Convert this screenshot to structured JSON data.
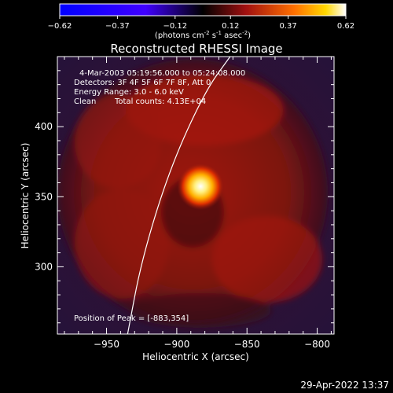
{
  "chart_data": {
    "type": "heatmap",
    "title": "Reconstructed RHESSI Image",
    "colorbar": {
      "min": -0.62,
      "max": 0.62,
      "ticks": [
        "-0.62",
        "-0.37",
        "-0.12",
        "0.12",
        "0.37",
        "0.62"
      ],
      "unit_main": "(photons cm",
      "unit_sup1": "-2",
      "unit_mid": " s",
      "unit_sup2": "-1",
      "unit_mid2": " asec",
      "unit_sup3": "-2",
      "unit_end": ")"
    },
    "xlabel": "Heliocentric X (arcsec)",
    "ylabel": "Heliocentric Y (arcsec)",
    "xlim": [
      -985,
      -788
    ],
    "ylim": [
      252,
      450
    ],
    "x_ticks": [
      -950,
      -900,
      -850,
      -800
    ],
    "x_tick_labels": [
      "−950",
      "−900",
      "−850",
      "−800"
    ],
    "y_ticks": [
      300,
      350,
      400
    ],
    "y_tick_labels": [
      "300",
      "350",
      "400"
    ],
    "peak": {
      "x": -883,
      "y": 354
    },
    "annotations": {
      "time": "4-Mar-2003 05:19:56.000 to 05:24:08.000",
      "detectors": "Detectors: 3F 4F 5F 6F 7F 8F, Att 0",
      "energy": "Energy Range: 3.0 - 6.0 keV",
      "clean": "Clean",
      "counts": "Total counts: 4.13E+04",
      "peak_label": "Position of Peak = [-883,354]"
    },
    "limb": [
      [
        -935,
        252
      ],
      [
        -925,
        305
      ],
      [
        -905,
        370
      ],
      [
        -880,
        425
      ],
      [
        -862,
        450
      ]
    ],
    "colors": {
      "background": "#000000",
      "map_low": "#3a1040",
      "map_mid": "#8a1410",
      "map_high": "#ffffff",
      "limb": "#ffffff"
    }
  },
  "footer": {
    "date": "29-Apr-2022 13:37"
  }
}
